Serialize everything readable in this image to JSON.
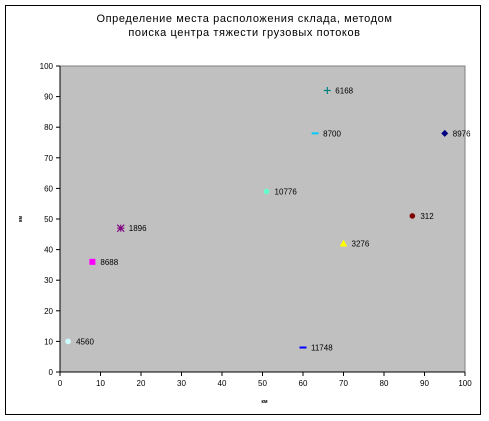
{
  "chart_data": {
    "type": "scatter",
    "title_lines": [
      "Определение места расположения склада, методом",
      "поиска центра тяжести грузовых потоков"
    ],
    "xlabel": "км",
    "ylabel": "км",
    "xlim": [
      0,
      100
    ],
    "ylim": [
      0,
      100
    ],
    "xticks": [
      0,
      10,
      20,
      30,
      40,
      50,
      60,
      70,
      80,
      90,
      100
    ],
    "yticks": [
      0,
      10,
      20,
      30,
      40,
      50,
      60,
      70,
      80,
      90,
      100
    ],
    "grid": false,
    "legend": "none",
    "plot_background": "#c0c0c0",
    "points": [
      {
        "x": 66,
        "y": 92,
        "label": "6168",
        "marker": "plus",
        "color": "#008080"
      },
      {
        "x": 63,
        "y": 78,
        "label": "8700",
        "marker": "dash",
        "color": "#00ccff"
      },
      {
        "x": 95,
        "y": 78,
        "label": "8976",
        "marker": "diamond",
        "color": "#000080"
      },
      {
        "x": 51,
        "y": 59,
        "label": "10776",
        "marker": "circle",
        "color": "#66ffcc"
      },
      {
        "x": 87,
        "y": 51,
        "label": "312",
        "marker": "circle",
        "color": "#800000"
      },
      {
        "x": 15,
        "y": 47,
        "label": "1896",
        "marker": "star",
        "color": "#800080"
      },
      {
        "x": 70,
        "y": 42,
        "label": "3276",
        "marker": "triangle",
        "color": "#ffff00"
      },
      {
        "x": 8,
        "y": 36,
        "label": "8688",
        "marker": "square",
        "color": "#ff00ff"
      },
      {
        "x": 2,
        "y": 10,
        "label": "4560",
        "marker": "circle",
        "color": "#ccffff"
      },
      {
        "x": 60,
        "y": 8,
        "label": "11748",
        "marker": "dash",
        "color": "#0000ff"
      }
    ]
  }
}
